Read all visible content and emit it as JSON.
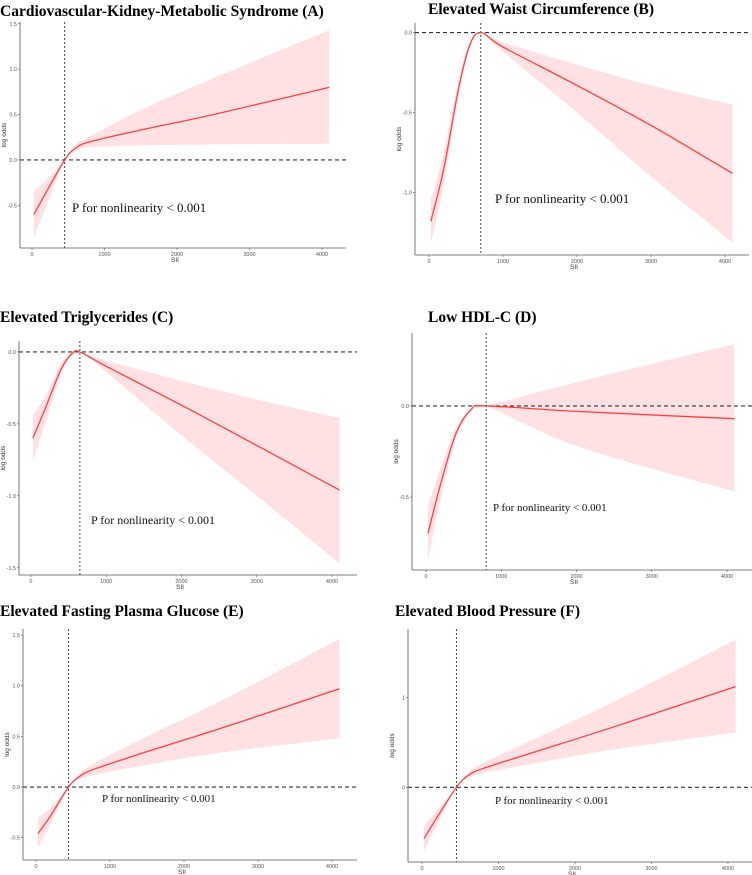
{
  "colors": {
    "line": "#ff4040",
    "band": "#ffe1e3",
    "axis": "#555555",
    "ref": "#333333"
  },
  "chart_data": [
    {
      "type": "line",
      "id": "A",
      "title": "Cardiovascular-Kidney-Metabolic Syndrome  (A)",
      "xlabel": "SII",
      "ylabel": "log odds",
      "annotation": "P for nonlinearity < 0.001",
      "ref_x": 450,
      "ref_y": 0,
      "xlim": [
        -166,
        4331
      ],
      "ylim": [
        -0.97,
        1.52
      ],
      "xticks": [
        0,
        1000,
        2000,
        3000,
        4000
      ],
      "xtick_labels": [
        "0",
        "1000",
        "2000",
        "3000",
        "4000"
      ],
      "yticks": [
        -0.5,
        0,
        0.5,
        1,
        1.5
      ],
      "ytick_labels": [
        "-0.5",
        "0.0",
        "0.5",
        "1.0",
        "1.5"
      ],
      "x": [
        25,
        200,
        450,
        600,
        800,
        1500,
        2500,
        4100
      ],
      "y": [
        -0.6,
        -0.35,
        0,
        0.13,
        0.2,
        0.33,
        0.5,
        0.8
      ],
      "lower": [
        -0.85,
        -0.5,
        0,
        0.1,
        0.14,
        0.16,
        0.17,
        0.18
      ],
      "upper": [
        -0.35,
        -0.22,
        0,
        0.17,
        0.26,
        0.55,
        0.9,
        1.43
      ]
    },
    {
      "type": "line",
      "id": "B",
      "title": "Elevated Waist Circumference  (B)",
      "xlabel": "SII",
      "ylabel": "log odds",
      "annotation": "P for nonlinearity < 0.001",
      "ref_x": 700,
      "ref_y": 0,
      "xlim": [
        -189,
        4324
      ],
      "ylim": [
        -1.39,
        0.06
      ],
      "xticks": [
        0,
        1000,
        2000,
        3000,
        4000
      ],
      "xtick_labels": [
        "0",
        "1000",
        "2000",
        "3000",
        "4000"
      ],
      "yticks": [
        -1,
        -0.5,
        0
      ],
      "ytick_labels": [
        "-1.0",
        "-0.5",
        "0.0"
      ],
      "x": [
        25,
        200,
        400,
        550,
        700,
        1000,
        2000,
        3000,
        4100
      ],
      "y": [
        -1.18,
        -0.85,
        -0.35,
        -0.08,
        0,
        -0.09,
        -0.33,
        -0.58,
        -0.88
      ],
      "lower": [
        -1.32,
        -0.95,
        -0.4,
        -0.1,
        0,
        -0.12,
        -0.5,
        -0.9,
        -1.31
      ],
      "upper": [
        -1.04,
        -0.75,
        -0.3,
        -0.06,
        0,
        -0.06,
        -0.2,
        -0.33,
        -0.45
      ]
    },
    {
      "type": "line",
      "id": "C",
      "title": "Elevated Triglycerides  (C)",
      "xlabel": "SII",
      "ylabel": "log odds",
      "annotation": "P for nonlinearity < 0.001",
      "ref_x": 650,
      "ref_y": 0,
      "xlim": [
        -159,
        4332
      ],
      "ylim": [
        -1.55,
        0.076
      ],
      "xticks": [
        0,
        1000,
        2000,
        3000,
        4000
      ],
      "xtick_labels": [
        "0",
        "1000",
        "2000",
        "3000",
        "4000"
      ],
      "yticks": [
        -1.5,
        -1,
        -0.5,
        0
      ],
      "ytick_labels": [
        "-1.5",
        "-1.0",
        "-0.5",
        "0.0"
      ],
      "x": [
        25,
        200,
        400,
        550,
        650,
        1000,
        2000,
        3000,
        4100
      ],
      "y": [
        -0.6,
        -0.38,
        -0.12,
        -0.01,
        0,
        -0.1,
        -0.37,
        -0.65,
        -0.96
      ],
      "lower": [
        -0.76,
        -0.48,
        -0.15,
        -0.02,
        0,
        -0.14,
        -0.58,
        -1.0,
        -1.47
      ],
      "upper": [
        -0.44,
        -0.3,
        -0.08,
        0,
        0,
        -0.06,
        -0.2,
        -0.33,
        -0.46
      ]
    },
    {
      "type": "line",
      "id": "D",
      "title": "Low HDL-C  (D)",
      "xlabel": "SII",
      "ylabel": "log odds",
      "annotation": "P for nonlinearity < 0.001",
      "ref_x": 800,
      "ref_y": 0,
      "xlim": [
        -186,
        4332
      ],
      "ylim": [
        -0.9,
        0.4
      ],
      "xticks": [
        0,
        1000,
        2000,
        3000,
        4000
      ],
      "xtick_labels": [
        "0",
        "1000",
        "2000",
        "3000",
        "4000"
      ],
      "yticks": [
        -0.5,
        0
      ],
      "ytick_labels": [
        "-0.5",
        "0.0"
      ],
      "x": [
        25,
        200,
        400,
        600,
        800,
        2000,
        4100
      ],
      "y": [
        -0.7,
        -0.42,
        -0.15,
        -0.02,
        0,
        -0.03,
        -0.07
      ],
      "lower": [
        -0.85,
        -0.5,
        -0.18,
        -0.03,
        0,
        -0.22,
        -0.47
      ],
      "upper": [
        -0.55,
        -0.33,
        -0.12,
        -0.01,
        0,
        0.13,
        0.34
      ]
    },
    {
      "type": "line",
      "id": "E",
      "title": "Elevated Fasting Plasma Glucose  (E)",
      "xlabel": "SII",
      "ylabel": "log odds",
      "annotation": "P for nonlinearity < 0.001",
      "ref_x": 440,
      "ref_y": 0,
      "xlim": [
        -176,
        4338
      ],
      "ylim": [
        -0.72,
        1.56
      ],
      "xticks": [
        0,
        1000,
        2000,
        3000,
        4000
      ],
      "xtick_labels": [
        "0",
        "1000",
        "2000",
        "3000",
        "4000"
      ],
      "yticks": [
        -0.5,
        0,
        0.5,
        1,
        1.5
      ],
      "ytick_labels": [
        "-0.5",
        "0.0",
        "0.5",
        "1.0",
        "1.5"
      ],
      "x": [
        25,
        200,
        440,
        600,
        800,
        1500,
        2500,
        4100
      ],
      "y": [
        -0.46,
        -0.28,
        0,
        0.11,
        0.18,
        0.35,
        0.58,
        0.97
      ],
      "lower": [
        -0.6,
        -0.36,
        0,
        0.08,
        0.12,
        0.22,
        0.34,
        0.48
      ],
      "upper": [
        -0.3,
        -0.2,
        0,
        0.14,
        0.24,
        0.5,
        0.85,
        1.46
      ]
    },
    {
      "type": "line",
      "id": "F",
      "title": "Elevated Blood Pressure  (F)",
      "xlabel": "SII",
      "ylabel": "log odds",
      "annotation": "P for nonlinearity < 0.001",
      "ref_x": 450,
      "ref_y": 0,
      "xlim": [
        -183,
        4314
      ],
      "ylim": [
        -0.83,
        1.76
      ],
      "xticks": [
        0,
        1000,
        2000,
        3000,
        4000
      ],
      "xtick_labels": [
        "0",
        "1000",
        "2000",
        "3000",
        "4000"
      ],
      "yticks": [
        0,
        1
      ],
      "ytick_labels": [
        "0",
        "1"
      ],
      "x": [
        25,
        200,
        450,
        600,
        800,
        1500,
        2500,
        4100
      ],
      "y": [
        -0.57,
        -0.33,
        0,
        0.13,
        0.21,
        0.4,
        0.67,
        1.12
      ],
      "lower": [
        -0.71,
        -0.41,
        0,
        0.1,
        0.16,
        0.27,
        0.42,
        0.61
      ],
      "upper": [
        -0.43,
        -0.25,
        0,
        0.16,
        0.27,
        0.55,
        0.95,
        1.64
      ]
    }
  ]
}
